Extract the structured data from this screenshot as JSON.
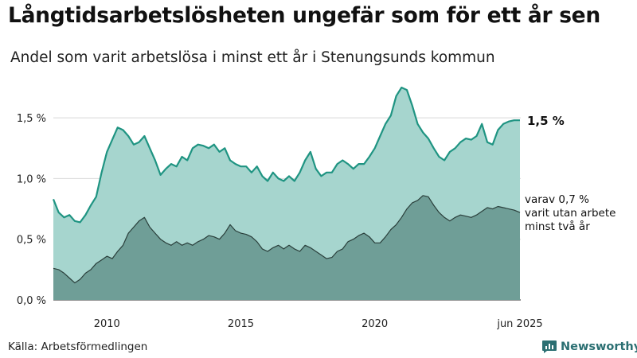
{
  "title": "Långtidsarbetslösheten ungefär som för ett år sen",
  "subtitle": "Andel som varit arbetslösa i minst ett år i Stenungsunds kommun",
  "source": "Källa: Arbetsförmedlingen",
  "brand": "Newsworthy",
  "colors": {
    "upper_fill": "#a6d5ce",
    "upper_line": "#1f9482",
    "lower_fill": "#6f9e97",
    "lower_line": "#2a3f3b",
    "brand": "#2b6f72"
  },
  "chart_data": {
    "type": "area",
    "title": "Långtidsarbetslösheten ungefär som för ett år sen",
    "subtitle": "Andel som varit arbetslösa i minst ett år i Stenungsunds kommun",
    "xlim": [
      2008.0,
      2025.45
    ],
    "ylim": [
      0,
      1.75
    ],
    "grid": true,
    "x_ticks": [
      {
        "value": 2010,
        "label": "2010"
      },
      {
        "value": 2015,
        "label": "2015"
      },
      {
        "value": 2020,
        "label": "2020"
      },
      {
        "value": 2025.42,
        "label": "jun 2025"
      }
    ],
    "y_ticks": [
      {
        "value": 0,
        "label": "0,0 %"
      },
      {
        "value": 0.5,
        "label": "0,5 %"
      },
      {
        "value": 1.0,
        "label": "1,0 %"
      },
      {
        "value": 1.5,
        "label": "1,5 %"
      }
    ],
    "end_labels": {
      "upper": "1,5 %",
      "lower": [
        "varav 0,7 %",
        "varit utan arbete",
        "minst två år"
      ]
    },
    "series": [
      {
        "key": "upper",
        "x": [
          2008.0,
          2008.2,
          2008.4,
          2008.6,
          2008.8,
          2009.0,
          2009.2,
          2009.4,
          2009.6,
          2009.8,
          2010.0,
          2010.2,
          2010.4,
          2010.6,
          2010.8,
          2011.0,
          2011.2,
          2011.4,
          2011.6,
          2011.8,
          2012.0,
          2012.2,
          2012.4,
          2012.6,
          2012.8,
          2013.0,
          2013.2,
          2013.4,
          2013.6,
          2013.8,
          2014.0,
          2014.2,
          2014.4,
          2014.6,
          2014.8,
          2015.0,
          2015.2,
          2015.4,
          2015.6,
          2015.8,
          2016.0,
          2016.2,
          2016.4,
          2016.6,
          2016.8,
          2017.0,
          2017.2,
          2017.4,
          2017.6,
          2017.8,
          2018.0,
          2018.2,
          2018.4,
          2018.6,
          2018.8,
          2019.0,
          2019.2,
          2019.4,
          2019.6,
          2019.8,
          2020.0,
          2020.2,
          2020.4,
          2020.6,
          2020.8,
          2021.0,
          2021.2,
          2021.4,
          2021.6,
          2021.8,
          2022.0,
          2022.2,
          2022.4,
          2022.6,
          2022.8,
          2023.0,
          2023.2,
          2023.4,
          2023.6,
          2023.8,
          2024.0,
          2024.2,
          2024.4,
          2024.6,
          2024.8,
          2025.0,
          2025.2,
          2025.42
        ],
        "values": [
          0.83,
          0.72,
          0.68,
          0.7,
          0.65,
          0.64,
          0.7,
          0.78,
          0.85,
          1.05,
          1.22,
          1.32,
          1.42,
          1.4,
          1.35,
          1.28,
          1.3,
          1.35,
          1.25,
          1.15,
          1.03,
          1.08,
          1.12,
          1.1,
          1.18,
          1.15,
          1.25,
          1.28,
          1.27,
          1.25,
          1.28,
          1.22,
          1.25,
          1.15,
          1.12,
          1.1,
          1.1,
          1.05,
          1.1,
          1.02,
          0.98,
          1.05,
          1.0,
          0.98,
          1.02,
          0.98,
          1.05,
          1.15,
          1.22,
          1.08,
          1.02,
          1.05,
          1.05,
          1.12,
          1.15,
          1.12,
          1.08,
          1.12,
          1.12,
          1.18,
          1.25,
          1.35,
          1.45,
          1.52,
          1.68,
          1.75,
          1.73,
          1.6,
          1.45,
          1.38,
          1.33,
          1.25,
          1.18,
          1.15,
          1.22,
          1.25,
          1.3,
          1.33,
          1.32,
          1.35,
          1.45,
          1.3,
          1.28,
          1.4,
          1.45,
          1.47,
          1.48,
          1.48
        ]
      },
      {
        "key": "lower",
        "x": [
          2008.0,
          2008.2,
          2008.4,
          2008.6,
          2008.8,
          2009.0,
          2009.2,
          2009.4,
          2009.6,
          2009.8,
          2010.0,
          2010.2,
          2010.4,
          2010.6,
          2010.8,
          2011.0,
          2011.2,
          2011.4,
          2011.6,
          2011.8,
          2012.0,
          2012.2,
          2012.4,
          2012.6,
          2012.8,
          2013.0,
          2013.2,
          2013.4,
          2013.6,
          2013.8,
          2014.0,
          2014.2,
          2014.4,
          2014.6,
          2014.8,
          2015.0,
          2015.2,
          2015.4,
          2015.6,
          2015.8,
          2016.0,
          2016.2,
          2016.4,
          2016.6,
          2016.8,
          2017.0,
          2017.2,
          2017.4,
          2017.6,
          2017.8,
          2018.0,
          2018.2,
          2018.4,
          2018.6,
          2018.8,
          2019.0,
          2019.2,
          2019.4,
          2019.6,
          2019.8,
          2020.0,
          2020.2,
          2020.4,
          2020.6,
          2020.8,
          2021.0,
          2021.2,
          2021.4,
          2021.6,
          2021.8,
          2022.0,
          2022.2,
          2022.4,
          2022.6,
          2022.8,
          2023.0,
          2023.2,
          2023.4,
          2023.6,
          2023.8,
          2024.0,
          2024.2,
          2024.4,
          2024.6,
          2024.8,
          2025.0,
          2025.2,
          2025.42
        ],
        "values": [
          0.26,
          0.25,
          0.22,
          0.18,
          0.14,
          0.17,
          0.22,
          0.25,
          0.3,
          0.33,
          0.36,
          0.34,
          0.4,
          0.45,
          0.55,
          0.6,
          0.65,
          0.68,
          0.6,
          0.55,
          0.5,
          0.47,
          0.45,
          0.48,
          0.45,
          0.47,
          0.45,
          0.48,
          0.5,
          0.53,
          0.52,
          0.5,
          0.55,
          0.62,
          0.57,
          0.55,
          0.54,
          0.52,
          0.48,
          0.42,
          0.4,
          0.43,
          0.45,
          0.42,
          0.45,
          0.42,
          0.4,
          0.45,
          0.43,
          0.4,
          0.37,
          0.34,
          0.35,
          0.4,
          0.42,
          0.48,
          0.5,
          0.53,
          0.55,
          0.52,
          0.47,
          0.47,
          0.52,
          0.58,
          0.62,
          0.68,
          0.75,
          0.8,
          0.82,
          0.86,
          0.85,
          0.78,
          0.72,
          0.68,
          0.65,
          0.68,
          0.7,
          0.69,
          0.68,
          0.7,
          0.73,
          0.76,
          0.75,
          0.77,
          0.76,
          0.75,
          0.74,
          0.72
        ]
      }
    ]
  }
}
